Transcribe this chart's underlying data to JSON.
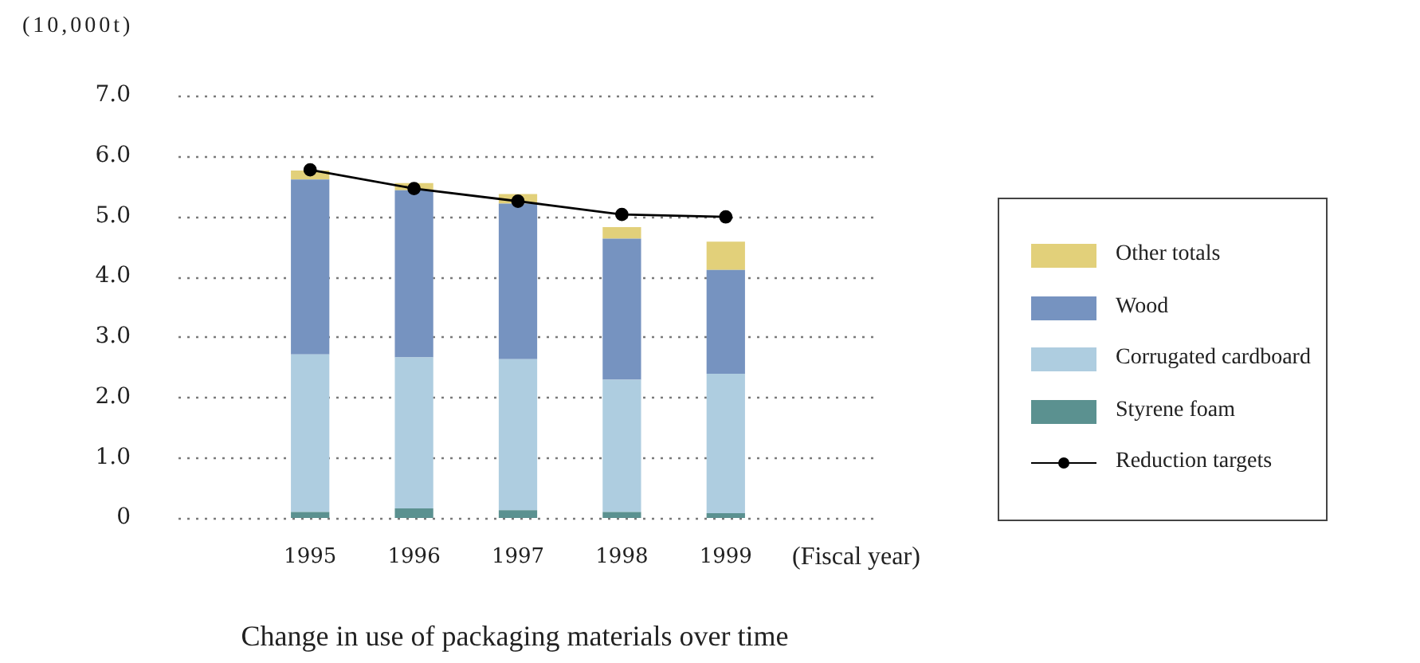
{
  "chart_data": {
    "type": "bar",
    "title": "Change in use of packaging materials over time",
    "xlabel": "(Fiscal year)",
    "ylabel": "(10,000t)",
    "categories": [
      "1995",
      "1996",
      "1997",
      "1998",
      "1999"
    ],
    "stacked": true,
    "series": [
      {
        "name": "Styrene foam",
        "color": "#5b9190",
        "values": [
          0.1,
          0.16,
          0.13,
          0.1,
          0.08
        ]
      },
      {
        "name": "Corrugated cardboard",
        "color": "#aecde0",
        "values": [
          2.61,
          2.5,
          2.5,
          2.19,
          2.31
        ]
      },
      {
        "name": "Wood",
        "color": "#7693c0",
        "values": [
          2.9,
          2.77,
          2.58,
          2.34,
          1.72
        ]
      },
      {
        "name": "Other totals",
        "color": "#e2d07a",
        "values": [
          0.15,
          0.12,
          0.16,
          0.19,
          0.47
        ]
      },
      {
        "name": "Reduction targets",
        "type": "line",
        "color": "#000000",
        "marker": "circle",
        "values": [
          5.77,
          5.46,
          5.25,
          5.03,
          4.99
        ]
      }
    ],
    "ylim": [
      0,
      7
    ],
    "yticks": [
      0,
      {
        "value": 1,
        "label": "1.0"
      },
      {
        "value": 2,
        "label": "2.0"
      },
      {
        "value": 3,
        "label": "3.0"
      },
      {
        "value": 4,
        "label": "4.0"
      },
      {
        "value": 5,
        "label": "5.0"
      },
      {
        "value": 6,
        "label": "6.0"
      },
      {
        "value": 7,
        "label": "7.0"
      }
    ],
    "grid": "y",
    "legend": "right"
  }
}
